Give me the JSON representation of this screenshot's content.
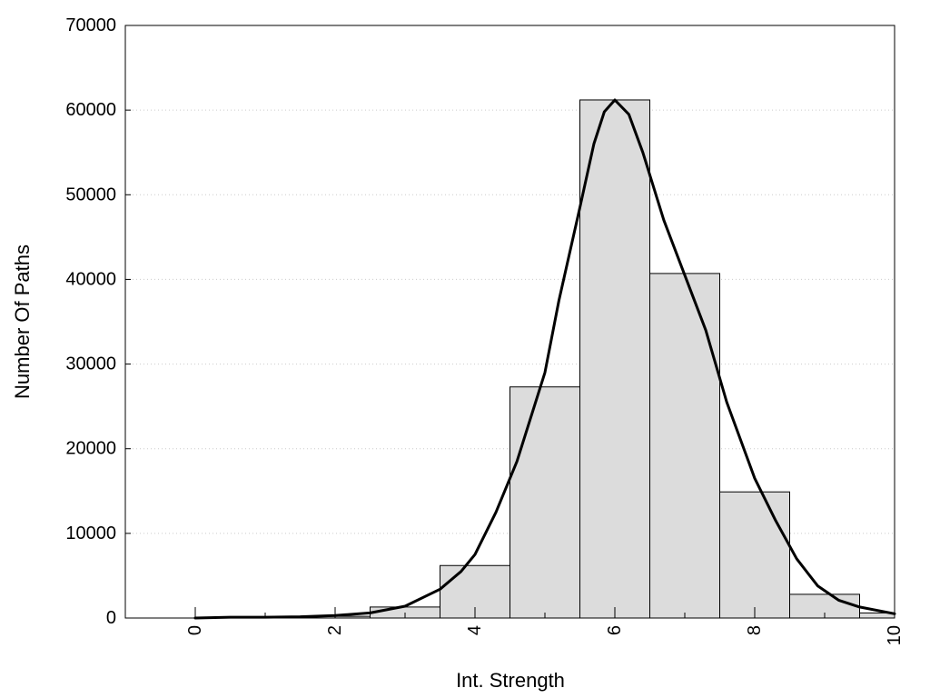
{
  "chart_data": {
    "type": "bar",
    "title": "",
    "xlabel": "Int. Strength",
    "ylabel": "Number Of Paths",
    "xlim": [
      -1,
      10
    ],
    "ylim": [
      0,
      70000
    ],
    "x_ticks": [
      0,
      2,
      4,
      6,
      8,
      10
    ],
    "x_tick_labels": [
      "0",
      "2",
      "4",
      "6",
      "8",
      "10"
    ],
    "y_ticks": [
      0,
      10000,
      20000,
      30000,
      40000,
      50000,
      60000,
      70000
    ],
    "y_tick_labels": [
      "0",
      "10000",
      "20000",
      "30000",
      "40000",
      "50000",
      "60000",
      "70000"
    ],
    "grid": "horizontal-dotted",
    "legend": "none",
    "bar_fill": "#dcdcdc",
    "bar_stroke": "#000000",
    "curve_color": "#000000",
    "bins": [
      {
        "x0": 0.5,
        "x1": 1.5,
        "value": 0
      },
      {
        "x0": 1.5,
        "x1": 2.5,
        "value": 200
      },
      {
        "x0": 2.5,
        "x1": 3.5,
        "value": 1300
      },
      {
        "x0": 3.5,
        "x1": 4.5,
        "value": 6200
      },
      {
        "x0": 4.5,
        "x1": 5.5,
        "value": 27300
      },
      {
        "x0": 5.5,
        "x1": 6.5,
        "value": 61200
      },
      {
        "x0": 6.5,
        "x1": 7.5,
        "value": 40700
      },
      {
        "x0": 7.5,
        "x1": 8.5,
        "value": 14900
      },
      {
        "x0": 8.5,
        "x1": 9.5,
        "value": 2800
      },
      {
        "x0": 9.5,
        "x1": 10,
        "value": 600
      }
    ],
    "curve": {
      "x": [
        0,
        0.5,
        1,
        1.5,
        2,
        2.5,
        3,
        3.5,
        3.8,
        4,
        4.3,
        4.6,
        5,
        5.2,
        5.5,
        5.7,
        5.85,
        6,
        6.2,
        6.4,
        6.7,
        7,
        7.3,
        7.6,
        8,
        8.3,
        8.6,
        8.9,
        9.2,
        9.5,
        10
      ],
      "y": [
        0,
        100,
        100,
        150,
        300,
        600,
        1400,
        3400,
        5500,
        7500,
        12500,
        18500,
        29000,
        37500,
        48500,
        56000,
        59800,
        61200,
        59500,
        55000,
        47000,
        40500,
        34000,
        25500,
        16500,
        11500,
        7000,
        3800,
        2100,
        1300,
        500
      ]
    }
  }
}
